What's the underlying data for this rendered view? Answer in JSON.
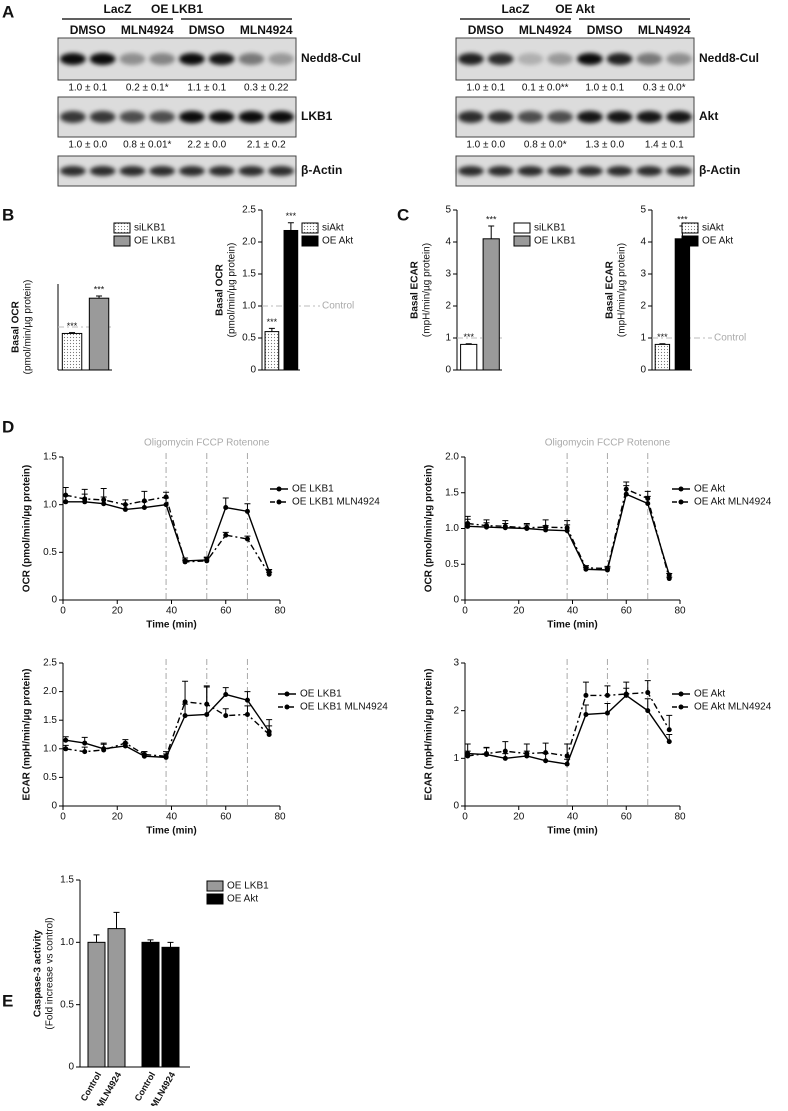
{
  "panels": [
    "A",
    "B",
    "C",
    "D",
    "E"
  ],
  "blots": [
    {
      "groups": [
        "LacZ",
        "OE LKB1"
      ],
      "lanes": [
        "DMSO",
        "MLN4924",
        "DMSO",
        "MLN4924"
      ],
      "rows": [
        {
          "label": "Nedd8-Cul",
          "quant": [
            "1.0 ± 0.1",
            "0.2 ± 0.1*",
            "1.1 ± 0.1",
            "0.3 ± 0.22"
          ]
        },
        {
          "label": "LKB1",
          "quant": [
            "1.0 ± 0.0",
            "0.8 ± 0.01*",
            "2.2 ± 0.0",
            "2.1 ± 0.2"
          ]
        },
        {
          "label": "β-Actin"
        }
      ]
    },
    {
      "groups": [
        "LacZ",
        "OE Akt"
      ],
      "lanes": [
        "DMSO",
        "MLN4924",
        "DMSO",
        "MLN4924"
      ],
      "rows": [
        {
          "label": "Nedd8-Cul",
          "quant": [
            "1.0 ± 0.1",
            "0.1 ± 0.0**",
            "1.0 ± 0.1",
            "0.3 ± 0.0*"
          ]
        },
        {
          "label": "Akt",
          "quant": [
            "1.0 ± 0.0",
            "0.8 ± 0.0*",
            "1.3 ± 0.0",
            "1.4 ± 0.1"
          ]
        },
        {
          "label": "β-Actin"
        }
      ]
    }
  ],
  "chart_data": [
    {
      "type": "bar",
      "ylabel": [
        "Basal OCR",
        "(pmol/min/µg protein)"
      ],
      "ylim": [
        0,
        2
      ],
      "reference_line": 1,
      "series": [
        {
          "name": "siLKB1",
          "color": "#ffffff",
          "pattern": "dots",
          "values": [
            0.85
          ],
          "errors": [
            0.02
          ],
          "annotations": [
            "***"
          ]
        },
        {
          "name": "OE LKB1",
          "color": "#9a9a9a",
          "values": [
            1.67
          ],
          "errors": [
            0.05
          ],
          "annotations": [
            "***"
          ]
        }
      ]
    },
    {
      "type": "bar",
      "ylabel": [
        "Basal OCR",
        "(pmol/min/µg protein)"
      ],
      "ylim": [
        0,
        2.5
      ],
      "yticks": [
        0,
        0.5,
        {
          "value": 1,
          "label": "1.0"
        },
        1.5,
        {
          "value": 2,
          "label": "2.0"
        },
        2.5
      ],
      "reference_line": 1,
      "reference_label": "Control",
      "series": [
        {
          "name": "siAkt",
          "color": "#ffffff",
          "pattern": "dots",
          "values": [
            0.6
          ],
          "errors": [
            0.05
          ],
          "annotations": [
            "***"
          ]
        },
        {
          "name": "OE Akt",
          "color": "#000000",
          "values": [
            2.18
          ],
          "errors": [
            0.12
          ],
          "annotations": [
            "***"
          ]
        }
      ]
    },
    {
      "type": "bar",
      "ylabel": [
        "Basal ECAR",
        "(mpH/min/µg protein)"
      ],
      "ylim": [
        0,
        5
      ],
      "yticks": [
        0,
        1,
        2,
        3,
        4,
        5
      ],
      "reference_line": 1,
      "series": [
        {
          "name": "siLKB1",
          "color": "#ffffff",
          "values": [
            0.8
          ],
          "errors": [
            0.02
          ],
          "annotations": [
            "***"
          ]
        },
        {
          "name": "OE LKB1",
          "color": "#9a9a9a",
          "values": [
            4.1
          ],
          "errors": [
            0.4
          ],
          "annotations": [
            "***"
          ]
        }
      ]
    },
    {
      "type": "bar",
      "ylabel": [
        "Basal ECAR",
        "(mpH/min/µg protein)"
      ],
      "ylim": [
        0,
        5
      ],
      "yticks": [
        0,
        1,
        2,
        3,
        4,
        5
      ],
      "reference_line": 1,
      "reference_label": "Control",
      "series": [
        {
          "name": "siAkt",
          "color": "#ffffff",
          "pattern": "dots",
          "values": [
            0.8
          ],
          "errors": [
            0.02
          ],
          "annotations": [
            "***"
          ]
        },
        {
          "name": "OE Akt",
          "color": "#000000",
          "values": [
            4.1
          ],
          "errors": [
            0.4
          ],
          "annotations": [
            "***"
          ]
        }
      ]
    },
    {
      "type": "line",
      "ylabel": "OCR (pmol/min/µg protein)",
      "xlabel": "Time (min)",
      "annotation": "Oligomycin FCCP Rotenone",
      "xlim": [
        0,
        80
      ],
      "xticks": [
        0,
        20,
        40,
        60,
        80
      ],
      "ylim": [
        0,
        1.5
      ],
      "yticks": [
        0,
        0.5,
        {
          "value": 1,
          "label": "1.0"
        },
        1.5
      ],
      "event_lines": [
        38,
        53,
        68
      ],
      "x": [
        1,
        8,
        15,
        23,
        30,
        38,
        45,
        53,
        60,
        68,
        76
      ],
      "series": [
        {
          "name": "OE LKB1",
          "color": "#000000",
          "line_style": "solid",
          "values": [
            1.03,
            1.03,
            1.01,
            0.95,
            0.97,
            1.0,
            0.41,
            0.42,
            0.97,
            0.93,
            0.3
          ],
          "errors": [
            0.06,
            0.08,
            0.07,
            0.05,
            0.06,
            0.07,
            0.03,
            0.03,
            0.1,
            0.08,
            0.02
          ]
        },
        {
          "name": "OE LKB1 MLN4924",
          "color": "#000000",
          "line_style": "dashdot",
          "values": [
            1.1,
            1.06,
            1.05,
            1.0,
            1.04,
            1.08,
            0.4,
            0.41,
            0.68,
            0.64,
            0.27
          ],
          "errors": [
            0.08,
            0.1,
            0.12,
            0.05,
            0.1,
            0.05,
            0.02,
            0.03,
            0.03,
            0.03,
            0.02
          ]
        }
      ]
    },
    {
      "type": "line",
      "ylabel": "OCR (pmol/min/µg protein)",
      "xlabel": "Time (min)",
      "annotation": "Oligomycin FCCP Rotenone",
      "xlim": [
        0,
        80
      ],
      "xticks": [
        0,
        20,
        40,
        60,
        80
      ],
      "ylim": [
        0,
        2
      ],
      "yticks": [
        0,
        0.5,
        {
          "value": 1,
          "label": "1.0"
        },
        1.5,
        {
          "value": 2,
          "label": "2.0"
        }
      ],
      "event_lines": [
        38,
        53,
        68
      ],
      "x": [
        1,
        8,
        15,
        23,
        30,
        38,
        45,
        53,
        60,
        68,
        76
      ],
      "series": [
        {
          "name": "OE Akt",
          "color": "#000000",
          "line_style": "solid",
          "values": [
            1.03,
            1.02,
            1.01,
            1.0,
            0.98,
            0.97,
            0.43,
            0.42,
            1.48,
            1.35,
            0.35
          ],
          "errors": [
            0.1,
            0.06,
            0.06,
            0.05,
            0.06,
            0.08,
            0.03,
            0.03,
            0.12,
            0.1,
            0.02
          ]
        },
        {
          "name": "OE Akt MLN4924",
          "color": "#000000",
          "line_style": "dashdot",
          "values": [
            1.07,
            1.04,
            1.03,
            1.01,
            1.02,
            1.01,
            0.45,
            0.44,
            1.55,
            1.42,
            0.3
          ],
          "errors": [
            0.1,
            0.08,
            0.08,
            0.06,
            0.1,
            0.1,
            0.03,
            0.03,
            0.1,
            0.1,
            0.02
          ]
        }
      ]
    },
    {
      "type": "line",
      "ylabel": "ECAR (mpH/min/µg protein)",
      "xlabel": "Time (min)",
      "xlim": [
        0,
        80
      ],
      "xticks": [
        0,
        20,
        40,
        60,
        80
      ],
      "ylim": [
        0,
        2.5
      ],
      "yticks": [
        0,
        0.5,
        {
          "value": 1,
          "label": "1.0"
        },
        1.5,
        {
          "value": 2,
          "label": "2.0"
        },
        2.5
      ],
      "event_lines": [
        38,
        53,
        68
      ],
      "x": [
        1,
        8,
        15,
        23,
        30,
        38,
        45,
        53,
        60,
        68,
        76
      ],
      "series": [
        {
          "name": "OE LKB1",
          "color": "#000000",
          "line_style": "solid",
          "values": [
            1.15,
            1.1,
            1.0,
            1.05,
            0.87,
            0.85,
            1.58,
            1.6,
            1.95,
            1.85,
            1.3
          ],
          "errors": [
            0.06,
            0.1,
            0.1,
            0.05,
            0.08,
            0.06,
            0.2,
            0.5,
            0.12,
            0.15,
            0.1
          ]
        },
        {
          "name": "OE LKB1 MLN4924",
          "color": "#000000",
          "line_style": "dashdot",
          "values": [
            1.0,
            0.95,
            0.98,
            1.1,
            0.9,
            0.87,
            1.82,
            1.78,
            1.58,
            1.6,
            1.25
          ],
          "errors": [
            0.06,
            0.08,
            0.1,
            0.06,
            0.05,
            0.08,
            0.36,
            0.3,
            0.12,
            0.15,
            0.26
          ]
        }
      ]
    },
    {
      "type": "line",
      "ylabel": "ECAR (mpH/min/µg protein)",
      "xlabel": "Time (min)",
      "xlim": [
        0,
        80
      ],
      "xticks": [
        0,
        20,
        40,
        60,
        80
      ],
      "ylim": [
        0,
        3
      ],
      "yticks": [
        0,
        1,
        2,
        3
      ],
      "event_lines": [
        38,
        53,
        68
      ],
      "x": [
        1,
        8,
        15,
        23,
        30,
        38,
        45,
        53,
        60,
        68,
        76
      ],
      "series": [
        {
          "name": "OE Akt",
          "color": "#000000",
          "line_style": "solid",
          "values": [
            1.1,
            1.08,
            1.0,
            1.05,
            0.95,
            0.88,
            1.92,
            1.95,
            2.32,
            2.0,
            1.35
          ],
          "errors": [
            0.2,
            0.15,
            0.1,
            0.1,
            0.15,
            0.1,
            0.2,
            0.2,
            0.15,
            0.25,
            0.15
          ]
        },
        {
          "name": "OE Akt MLN4924",
          "color": "#000000",
          "line_style": "dashdot",
          "values": [
            1.05,
            1.1,
            1.15,
            1.1,
            1.12,
            1.05,
            2.32,
            2.32,
            2.35,
            2.38,
            1.6
          ],
          "errors": [
            0.1,
            0.12,
            0.2,
            0.2,
            0.2,
            0.25,
            0.28,
            0.2,
            0.25,
            0.25,
            0.3
          ]
        }
      ]
    },
    {
      "type": "bar",
      "ylabel": [
        "Caspase-3 activity",
        "(Fold increase vs control)"
      ],
      "categories": [
        "Control",
        "MLN4924",
        "Control",
        "MLN4924"
      ],
      "ylim": [
        0,
        1.5
      ],
      "yticks": [
        0,
        0.5,
        {
          "value": 1,
          "label": "1.0"
        },
        1.5
      ],
      "series": [
        {
          "name": "OE LKB1",
          "color": "#9a9a9a",
          "values": [
            1.0,
            1.11,
            null,
            null
          ],
          "errors": [
            0.06,
            0.13,
            null,
            null
          ]
        },
        {
          "name": "OE Akt",
          "color": "#000000",
          "values": [
            null,
            null,
            1.0,
            0.96
          ],
          "errors": [
            null,
            null,
            0.02,
            0.04
          ]
        }
      ]
    }
  ]
}
